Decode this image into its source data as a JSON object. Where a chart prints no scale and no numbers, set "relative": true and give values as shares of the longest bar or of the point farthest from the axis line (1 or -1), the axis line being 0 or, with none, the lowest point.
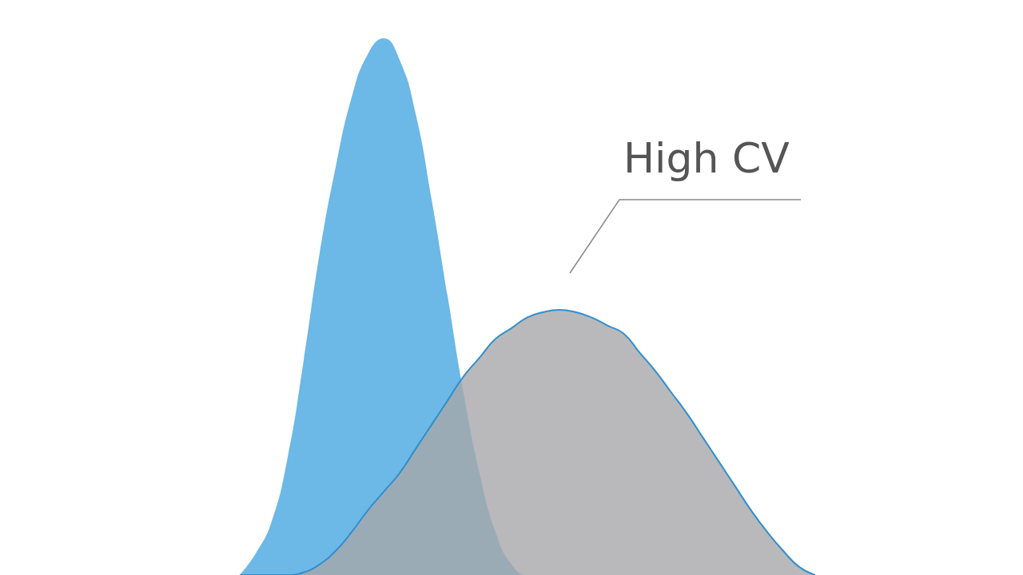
{
  "chart_data": {
    "type": "area",
    "relative": true,
    "categories": [
      null,
      null,
      null,
      null,
      null,
      null,
      null,
      null,
      null,
      null,
      null,
      null,
      null,
      null,
      null,
      null,
      null,
      null,
      null,
      null,
      null,
      null,
      null,
      null,
      null,
      null,
      null,
      null,
      null,
      null,
      null,
      null,
      null,
      null,
      null,
      null,
      null
    ],
    "series": [
      {
        "color": "#6cb8e6",
        "values": [
          0,
          0.04,
          0.1,
          0.22,
          0.4,
          0.6,
          0.76,
          0.89,
          0.97,
          1,
          0.96,
          0.86,
          0.7,
          0.52,
          0.34,
          0.19,
          0.08,
          0.02,
          0,
          0,
          0,
          0,
          0,
          0,
          0,
          0,
          0,
          0,
          0,
          0,
          0,
          0,
          0,
          0,
          0,
          0,
          0
        ]
      },
      {
        "color": "#a7a8aa",
        "values": [
          0,
          0,
          0,
          0,
          0.005,
          0.02,
          0.045,
          0.08,
          0.12,
          0.155,
          0.19,
          0.235,
          0.28,
          0.325,
          0.37,
          0.405,
          0.44,
          0.46,
          0.48,
          0.49,
          0.494,
          0.49,
          0.48,
          0.465,
          0.45,
          0.415,
          0.38,
          0.34,
          0.3,
          0.255,
          0.21,
          0.165,
          0.12,
          0.08,
          0.045,
          0.015,
          0
        ]
      }
    ],
    "annotations": [
      "High CV"
    ]
  }
}
